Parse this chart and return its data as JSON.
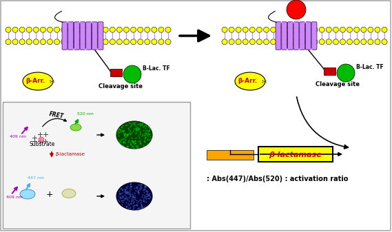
{
  "bg_color": "#ffffff",
  "membrane_dot_color": "#ffff00",
  "membrane_dot_outline": "#000000",
  "membrane_line_color": "#cc88ff",
  "gpcr_color": "#cc88ff",
  "beta_arr_fill": "#ffff00",
  "beta_arr_text": "β-Arr.",
  "beta_arr_text_color": "#cc0000",
  "blac_tf_text": "B-Lac. TF",
  "cleavage_text": "Cleavage site",
  "red_circle_color": "#ff0000",
  "green_circle_color": "#00bb00",
  "red_rect_color": "#cc0000",
  "orange_bar_color": "#FFA500",
  "yellow_box_fill": "#ffff00",
  "yellow_box_border": "#000000",
  "beta_lactamase_box_text": "β-lactamase",
  "beta_lactamase_box_text_color": "#cc0000",
  "ratio_text": ": Abs(447)/Abs(520) : activation ratio",
  "nm409_color": "#aa00aa",
  "nm520_color": "#00aa00",
  "nm447_color": "#44aaff",
  "beta_lactamase_arrow_color": "#cc0000"
}
